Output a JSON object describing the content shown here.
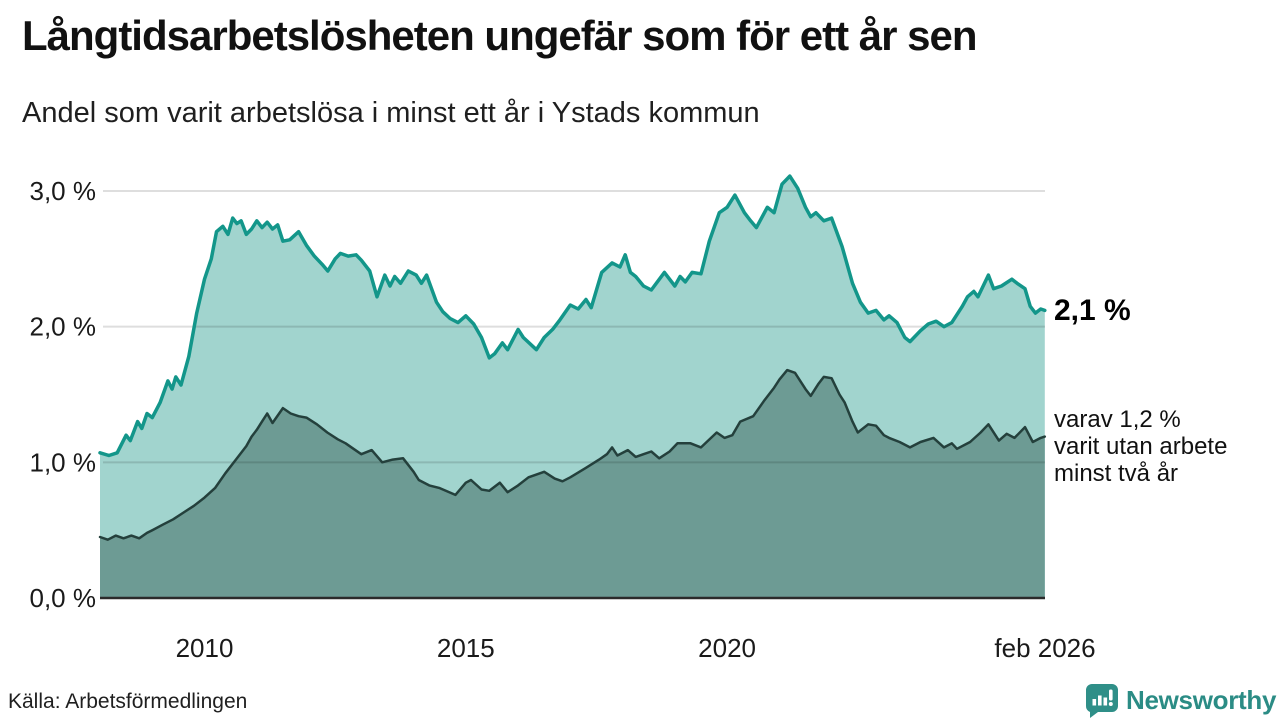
{
  "header": {
    "title": "Långtidsarbetslösheten ungefär som för ett år sen",
    "subtitle": "Andel som varit arbetslösa i minst ett år i Ystads kommun"
  },
  "annotations": {
    "total_label": "2,1 %",
    "two_year_label": "varav 1,2 %\nvarit utan arbete\nminst två år"
  },
  "footer": {
    "source": "Källa: Arbetsförmedlingen",
    "logo_text": "Newsworthy",
    "logo_color": "#2f8f88"
  },
  "chart_data": {
    "type": "area",
    "title": "Långtidsarbetslösheten ungefär som för ett år sen",
    "subtitle": "Andel som varit arbetslösa i minst ett år i Ystads kommun",
    "source": "Källa: Arbetsförmedlingen",
    "x_range": [
      2008.0,
      2026.083
    ],
    "ylim": [
      0.0,
      3.0
    ],
    "grid": true,
    "grid_color": "rgba(0,0,0,0.13)",
    "axis_color": "#2b2b2b",
    "legend_position": "right-annotations",
    "yticks": [
      {
        "v": 3.0,
        "label": "3,0 %"
      },
      {
        "v": 2.0,
        "label": "2,0 %"
      },
      {
        "v": 1.0,
        "label": "1,0 %"
      },
      {
        "v": 0.0,
        "label": "0,0 %"
      }
    ],
    "xticks": [
      {
        "x": 2010,
        "label": "2010"
      },
      {
        "x": 2015,
        "label": "2015"
      },
      {
        "x": 2020,
        "label": "2020"
      },
      {
        "x": 2026.083,
        "label": "feb 2026"
      }
    ],
    "series": [
      {
        "name": "Andel arbetslösa minst ett år (totalt)",
        "end_value": "2,1 %",
        "line_color": "#13968a",
        "fill_color": "#a1d4ce",
        "line_width": 3.5,
        "points": [
          [
            2008.0,
            1.07
          ],
          [
            2008.17,
            1.05
          ],
          [
            2008.33,
            1.07
          ],
          [
            2008.5,
            1.2
          ],
          [
            2008.58,
            1.16
          ],
          [
            2008.72,
            1.3
          ],
          [
            2008.8,
            1.25
          ],
          [
            2008.9,
            1.36
          ],
          [
            2009.0,
            1.33
          ],
          [
            2009.15,
            1.44
          ],
          [
            2009.3,
            1.6
          ],
          [
            2009.38,
            1.54
          ],
          [
            2009.45,
            1.63
          ],
          [
            2009.55,
            1.57
          ],
          [
            2009.7,
            1.78
          ],
          [
            2009.85,
            2.1
          ],
          [
            2010.0,
            2.35
          ],
          [
            2010.13,
            2.5
          ],
          [
            2010.23,
            2.7
          ],
          [
            2010.35,
            2.74
          ],
          [
            2010.45,
            2.68
          ],
          [
            2010.54,
            2.8
          ],
          [
            2010.62,
            2.76
          ],
          [
            2010.7,
            2.78
          ],
          [
            2010.8,
            2.68
          ],
          [
            2010.9,
            2.72
          ],
          [
            2011.0,
            2.78
          ],
          [
            2011.1,
            2.73
          ],
          [
            2011.2,
            2.77
          ],
          [
            2011.3,
            2.72
          ],
          [
            2011.4,
            2.75
          ],
          [
            2011.5,
            2.63
          ],
          [
            2011.63,
            2.64
          ],
          [
            2011.8,
            2.7
          ],
          [
            2011.95,
            2.6
          ],
          [
            2012.1,
            2.52
          ],
          [
            2012.25,
            2.46
          ],
          [
            2012.36,
            2.41
          ],
          [
            2012.5,
            2.5
          ],
          [
            2012.6,
            2.54
          ],
          [
            2012.75,
            2.52
          ],
          [
            2012.9,
            2.53
          ],
          [
            2013.0,
            2.49
          ],
          [
            2013.16,
            2.41
          ],
          [
            2013.3,
            2.22
          ],
          [
            2013.45,
            2.38
          ],
          [
            2013.55,
            2.3
          ],
          [
            2013.64,
            2.37
          ],
          [
            2013.75,
            2.32
          ],
          [
            2013.9,
            2.41
          ],
          [
            2014.05,
            2.38
          ],
          [
            2014.15,
            2.32
          ],
          [
            2014.25,
            2.38
          ],
          [
            2014.44,
            2.18
          ],
          [
            2014.56,
            2.11
          ],
          [
            2014.7,
            2.06
          ],
          [
            2014.85,
            2.03
          ],
          [
            2015.0,
            2.08
          ],
          [
            2015.15,
            2.02
          ],
          [
            2015.3,
            1.92
          ],
          [
            2015.45,
            1.77
          ],
          [
            2015.55,
            1.8
          ],
          [
            2015.7,
            1.88
          ],
          [
            2015.8,
            1.83
          ],
          [
            2016.0,
            1.98
          ],
          [
            2016.1,
            1.92
          ],
          [
            2016.35,
            1.83
          ],
          [
            2016.5,
            1.92
          ],
          [
            2016.66,
            1.98
          ],
          [
            2016.8,
            2.05
          ],
          [
            2017.0,
            2.16
          ],
          [
            2017.15,
            2.13
          ],
          [
            2017.3,
            2.2
          ],
          [
            2017.4,
            2.14
          ],
          [
            2017.6,
            2.4
          ],
          [
            2017.8,
            2.47
          ],
          [
            2017.95,
            2.44
          ],
          [
            2018.05,
            2.53
          ],
          [
            2018.15,
            2.4
          ],
          [
            2018.25,
            2.37
          ],
          [
            2018.4,
            2.3
          ],
          [
            2018.55,
            2.27
          ],
          [
            2018.8,
            2.4
          ],
          [
            2019.0,
            2.3
          ],
          [
            2019.1,
            2.37
          ],
          [
            2019.2,
            2.33
          ],
          [
            2019.33,
            2.4
          ],
          [
            2019.5,
            2.39
          ],
          [
            2019.66,
            2.63
          ],
          [
            2019.85,
            2.84
          ],
          [
            2020.0,
            2.88
          ],
          [
            2020.15,
            2.97
          ],
          [
            2020.33,
            2.84
          ],
          [
            2020.45,
            2.78
          ],
          [
            2020.56,
            2.73
          ],
          [
            2020.77,
            2.88
          ],
          [
            2020.9,
            2.84
          ],
          [
            2021.05,
            3.05
          ],
          [
            2021.2,
            3.11
          ],
          [
            2021.35,
            3.02
          ],
          [
            2021.5,
            2.88
          ],
          [
            2021.6,
            2.81
          ],
          [
            2021.7,
            2.84
          ],
          [
            2021.85,
            2.78
          ],
          [
            2022.0,
            2.8
          ],
          [
            2022.2,
            2.59
          ],
          [
            2022.4,
            2.32
          ],
          [
            2022.55,
            2.18
          ],
          [
            2022.7,
            2.1
          ],
          [
            2022.85,
            2.12
          ],
          [
            2023.0,
            2.05
          ],
          [
            2023.1,
            2.08
          ],
          [
            2023.25,
            2.03
          ],
          [
            2023.4,
            1.92
          ],
          [
            2023.5,
            1.89
          ],
          [
            2023.7,
            1.97
          ],
          [
            2023.85,
            2.02
          ],
          [
            2024.0,
            2.04
          ],
          [
            2024.15,
            2.0
          ],
          [
            2024.3,
            2.03
          ],
          [
            2024.5,
            2.15
          ],
          [
            2024.6,
            2.22
          ],
          [
            2024.72,
            2.26
          ],
          [
            2024.8,
            2.22
          ],
          [
            2025.0,
            2.38
          ],
          [
            2025.1,
            2.28
          ],
          [
            2025.25,
            2.3
          ],
          [
            2025.45,
            2.35
          ],
          [
            2025.55,
            2.32
          ],
          [
            2025.7,
            2.28
          ],
          [
            2025.8,
            2.15
          ],
          [
            2025.9,
            2.1
          ],
          [
            2026.0,
            2.13
          ],
          [
            2026.08,
            2.12
          ]
        ]
      },
      {
        "name": "varav utan arbete minst två år",
        "end_value": "1,2 %",
        "line_color": "#24403c",
        "fill_color": "#6d9b94",
        "line_width": 2.5,
        "points": [
          [
            2008.0,
            0.45
          ],
          [
            2008.15,
            0.43
          ],
          [
            2008.3,
            0.46
          ],
          [
            2008.45,
            0.44
          ],
          [
            2008.6,
            0.46
          ],
          [
            2008.75,
            0.44
          ],
          [
            2008.9,
            0.48
          ],
          [
            2009.0,
            0.5
          ],
          [
            2009.2,
            0.54
          ],
          [
            2009.4,
            0.58
          ],
          [
            2009.6,
            0.63
          ],
          [
            2009.8,
            0.68
          ],
          [
            2010.0,
            0.74
          ],
          [
            2010.2,
            0.81
          ],
          [
            2010.4,
            0.92
          ],
          [
            2010.6,
            1.02
          ],
          [
            2010.8,
            1.12
          ],
          [
            2010.9,
            1.19
          ],
          [
            2011.0,
            1.24
          ],
          [
            2011.1,
            1.3
          ],
          [
            2011.2,
            1.36
          ],
          [
            2011.3,
            1.29
          ],
          [
            2011.5,
            1.4
          ],
          [
            2011.65,
            1.36
          ],
          [
            2011.8,
            1.34
          ],
          [
            2011.95,
            1.33
          ],
          [
            2012.15,
            1.28
          ],
          [
            2012.35,
            1.22
          ],
          [
            2012.55,
            1.17
          ],
          [
            2012.7,
            1.14
          ],
          [
            2012.85,
            1.1
          ],
          [
            2013.0,
            1.06
          ],
          [
            2013.2,
            1.09
          ],
          [
            2013.4,
            1.0
          ],
          [
            2013.6,
            1.02
          ],
          [
            2013.8,
            1.03
          ],
          [
            2014.0,
            0.93
          ],
          [
            2014.1,
            0.87
          ],
          [
            2014.3,
            0.83
          ],
          [
            2014.5,
            0.81
          ],
          [
            2014.8,
            0.76
          ],
          [
            2015.0,
            0.85
          ],
          [
            2015.1,
            0.87
          ],
          [
            2015.3,
            0.8
          ],
          [
            2015.45,
            0.79
          ],
          [
            2015.65,
            0.85
          ],
          [
            2015.8,
            0.78
          ],
          [
            2016.0,
            0.83
          ],
          [
            2016.2,
            0.89
          ],
          [
            2016.5,
            0.93
          ],
          [
            2016.7,
            0.88
          ],
          [
            2016.85,
            0.86
          ],
          [
            2017.0,
            0.89
          ],
          [
            2017.3,
            0.96
          ],
          [
            2017.55,
            1.02
          ],
          [
            2017.7,
            1.06
          ],
          [
            2017.8,
            1.11
          ],
          [
            2017.9,
            1.05
          ],
          [
            2018.1,
            1.09
          ],
          [
            2018.25,
            1.04
          ],
          [
            2018.4,
            1.06
          ],
          [
            2018.55,
            1.08
          ],
          [
            2018.7,
            1.03
          ],
          [
            2018.9,
            1.08
          ],
          [
            2019.05,
            1.14
          ],
          [
            2019.3,
            1.14
          ],
          [
            2019.5,
            1.11
          ],
          [
            2019.8,
            1.22
          ],
          [
            2019.95,
            1.18
          ],
          [
            2020.1,
            1.2
          ],
          [
            2020.25,
            1.3
          ],
          [
            2020.5,
            1.34
          ],
          [
            2020.7,
            1.45
          ],
          [
            2020.9,
            1.55
          ],
          [
            2021.0,
            1.61
          ],
          [
            2021.15,
            1.68
          ],
          [
            2021.3,
            1.66
          ],
          [
            2021.5,
            1.54
          ],
          [
            2021.6,
            1.49
          ],
          [
            2021.75,
            1.58
          ],
          [
            2021.85,
            1.63
          ],
          [
            2022.0,
            1.62
          ],
          [
            2022.15,
            1.5
          ],
          [
            2022.25,
            1.44
          ],
          [
            2022.4,
            1.3
          ],
          [
            2022.5,
            1.22
          ],
          [
            2022.7,
            1.28
          ],
          [
            2022.85,
            1.27
          ],
          [
            2023.0,
            1.2
          ],
          [
            2023.1,
            1.18
          ],
          [
            2023.3,
            1.15
          ],
          [
            2023.5,
            1.11
          ],
          [
            2023.7,
            1.15
          ],
          [
            2023.95,
            1.18
          ],
          [
            2024.15,
            1.11
          ],
          [
            2024.3,
            1.14
          ],
          [
            2024.4,
            1.1
          ],
          [
            2024.65,
            1.15
          ],
          [
            2024.85,
            1.22
          ],
          [
            2025.0,
            1.28
          ],
          [
            2025.2,
            1.16
          ],
          [
            2025.35,
            1.21
          ],
          [
            2025.5,
            1.18
          ],
          [
            2025.7,
            1.26
          ],
          [
            2025.85,
            1.15
          ],
          [
            2026.0,
            1.18
          ],
          [
            2026.08,
            1.19
          ]
        ]
      }
    ]
  }
}
